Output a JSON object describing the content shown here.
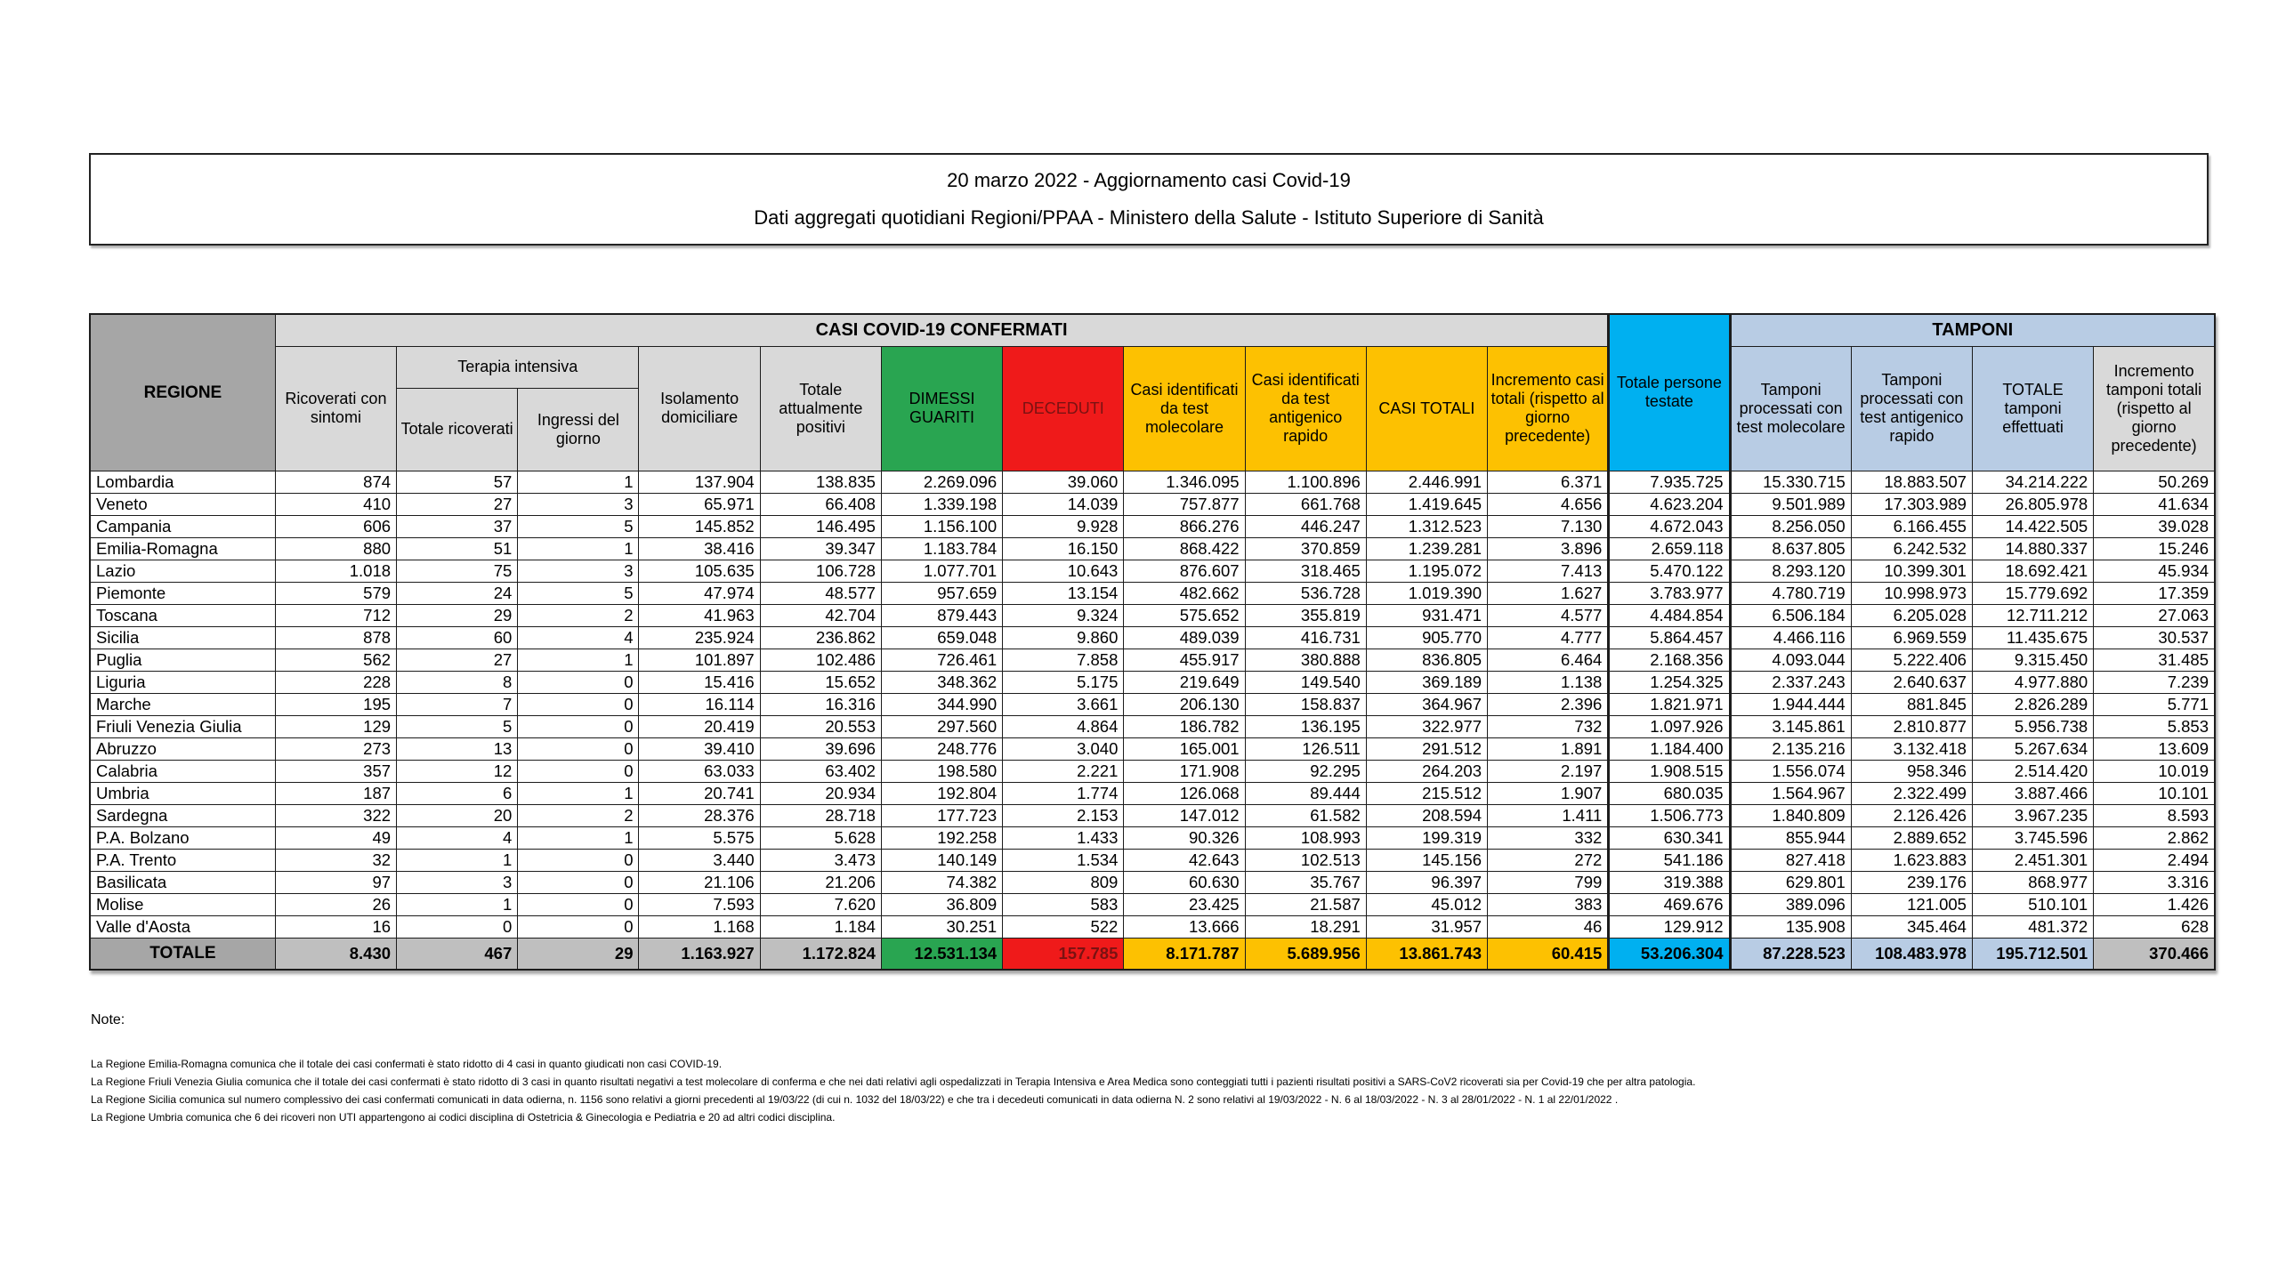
{
  "title": {
    "line1": "20 marzo 2022 - Aggiornamento casi Covid-19",
    "line2": "Dati aggregati quotidiani Regioni/PPAA - Ministero della Salute - Istituto Superiore di Sanità"
  },
  "colors": {
    "green": "#29a551",
    "red": "#ef1a1a",
    "gold": "#fdc101",
    "cyan": "#00b0f0",
    "light_blue": "#b8cce4",
    "header_gray": "#d9d9d9",
    "dark_gray": "#a6a6a6",
    "total_gray": "#bfbfbf",
    "deceduti_text": "#7a1212"
  },
  "table": {
    "corner_label": "REGIONE",
    "group1_label": "CASI COVID-19 CONFERMATI",
    "terapia_label": "Terapia intensiva",
    "group2_label": "TAMPONI",
    "total_label": "TOTALE",
    "columns": [
      {
        "label": "Ricoverati con sintomi",
        "theme": "plain"
      },
      {
        "label": "Totale ricoverati",
        "theme": "plain"
      },
      {
        "label": "Ingressi del giorno",
        "theme": "plain"
      },
      {
        "label": "Isolamento domiciliare",
        "theme": "plain"
      },
      {
        "label": "Totale attualmente positivi",
        "theme": "plain"
      },
      {
        "label": "DIMESSI GUARITI",
        "theme": "green"
      },
      {
        "label": "DECEDUTI",
        "theme": "red"
      },
      {
        "label": "Casi identificati da test molecolare",
        "theme": "gold"
      },
      {
        "label": "Casi identificati da test antigenico rapido",
        "theme": "gold"
      },
      {
        "label": "CASI TOTALI",
        "theme": "gold"
      },
      {
        "label": "Incremento casi totali (rispetto al giorno precedente)",
        "theme": "gold"
      },
      {
        "label": "Totale persone testate",
        "theme": "cyan"
      },
      {
        "label": "Tamponi processati con test molecolare",
        "theme": "blue"
      },
      {
        "label": "Tamponi processati con test antigenico rapido",
        "theme": "blue"
      },
      {
        "label": "TOTALE tamponi effettuati",
        "theme": "blue"
      },
      {
        "label": "Incremento tamponi totali (rispetto al giorno precedente)",
        "theme": "graylight"
      }
    ],
    "rows": [
      [
        "Lombardia",
        "874",
        "57",
        "1",
        "137.904",
        "138.835",
        "2.269.096",
        "39.060",
        "1.346.095",
        "1.100.896",
        "2.446.991",
        "6.371",
        "7.935.725",
        "15.330.715",
        "18.883.507",
        "34.214.222",
        "50.269"
      ],
      [
        "Veneto",
        "410",
        "27",
        "3",
        "65.971",
        "66.408",
        "1.339.198",
        "14.039",
        "757.877",
        "661.768",
        "1.419.645",
        "4.656",
        "4.623.204",
        "9.501.989",
        "17.303.989",
        "26.805.978",
        "41.634"
      ],
      [
        "Campania",
        "606",
        "37",
        "5",
        "145.852",
        "146.495",
        "1.156.100",
        "9.928",
        "866.276",
        "446.247",
        "1.312.523",
        "7.130",
        "4.672.043",
        "8.256.050",
        "6.166.455",
        "14.422.505",
        "39.028"
      ],
      [
        "Emilia-Romagna",
        "880",
        "51",
        "1",
        "38.416",
        "39.347",
        "1.183.784",
        "16.150",
        "868.422",
        "370.859",
        "1.239.281",
        "3.896",
        "2.659.118",
        "8.637.805",
        "6.242.532",
        "14.880.337",
        "15.246"
      ],
      [
        "Lazio",
        "1.018",
        "75",
        "3",
        "105.635",
        "106.728",
        "1.077.701",
        "10.643",
        "876.607",
        "318.465",
        "1.195.072",
        "7.413",
        "5.470.122",
        "8.293.120",
        "10.399.301",
        "18.692.421",
        "45.934"
      ],
      [
        "Piemonte",
        "579",
        "24",
        "5",
        "47.974",
        "48.577",
        "957.659",
        "13.154",
        "482.662",
        "536.728",
        "1.019.390",
        "1.627",
        "3.783.977",
        "4.780.719",
        "10.998.973",
        "15.779.692",
        "17.359"
      ],
      [
        "Toscana",
        "712",
        "29",
        "2",
        "41.963",
        "42.704",
        "879.443",
        "9.324",
        "575.652",
        "355.819",
        "931.471",
        "4.577",
        "4.484.854",
        "6.506.184",
        "6.205.028",
        "12.711.212",
        "27.063"
      ],
      [
        "Sicilia",
        "878",
        "60",
        "4",
        "235.924",
        "236.862",
        "659.048",
        "9.860",
        "489.039",
        "416.731",
        "905.770",
        "4.777",
        "5.864.457",
        "4.466.116",
        "6.969.559",
        "11.435.675",
        "30.537"
      ],
      [
        "Puglia",
        "562",
        "27",
        "1",
        "101.897",
        "102.486",
        "726.461",
        "7.858",
        "455.917",
        "380.888",
        "836.805",
        "6.464",
        "2.168.356",
        "4.093.044",
        "5.222.406",
        "9.315.450",
        "31.485"
      ],
      [
        "Liguria",
        "228",
        "8",
        "0",
        "15.416",
        "15.652",
        "348.362",
        "5.175",
        "219.649",
        "149.540",
        "369.189",
        "1.138",
        "1.254.325",
        "2.337.243",
        "2.640.637",
        "4.977.880",
        "7.239"
      ],
      [
        "Marche",
        "195",
        "7",
        "0",
        "16.114",
        "16.316",
        "344.990",
        "3.661",
        "206.130",
        "158.837",
        "364.967",
        "2.396",
        "1.821.971",
        "1.944.444",
        "881.845",
        "2.826.289",
        "5.771"
      ],
      [
        "Friuli Venezia Giulia",
        "129",
        "5",
        "0",
        "20.419",
        "20.553",
        "297.560",
        "4.864",
        "186.782",
        "136.195",
        "322.977",
        "732",
        "1.097.926",
        "3.145.861",
        "2.810.877",
        "5.956.738",
        "5.853"
      ],
      [
        "Abruzzo",
        "273",
        "13",
        "0",
        "39.410",
        "39.696",
        "248.776",
        "3.040",
        "165.001",
        "126.511",
        "291.512",
        "1.891",
        "1.184.400",
        "2.135.216",
        "3.132.418",
        "5.267.634",
        "13.609"
      ],
      [
        "Calabria",
        "357",
        "12",
        "0",
        "63.033",
        "63.402",
        "198.580",
        "2.221",
        "171.908",
        "92.295",
        "264.203",
        "2.197",
        "1.908.515",
        "1.556.074",
        "958.346",
        "2.514.420",
        "10.019"
      ],
      [
        "Umbria",
        "187",
        "6",
        "1",
        "20.741",
        "20.934",
        "192.804",
        "1.774",
        "126.068",
        "89.444",
        "215.512",
        "1.907",
        "680.035",
        "1.564.967",
        "2.322.499",
        "3.887.466",
        "10.101"
      ],
      [
        "Sardegna",
        "322",
        "20",
        "2",
        "28.376",
        "28.718",
        "177.723",
        "2.153",
        "147.012",
        "61.582",
        "208.594",
        "1.411",
        "1.506.773",
        "1.840.809",
        "2.126.426",
        "3.967.235",
        "8.593"
      ],
      [
        "P.A. Bolzano",
        "49",
        "4",
        "1",
        "5.575",
        "5.628",
        "192.258",
        "1.433",
        "90.326",
        "108.993",
        "199.319",
        "332",
        "630.341",
        "855.944",
        "2.889.652",
        "3.745.596",
        "2.862"
      ],
      [
        "P.A. Trento",
        "32",
        "1",
        "0",
        "3.440",
        "3.473",
        "140.149",
        "1.534",
        "42.643",
        "102.513",
        "145.156",
        "272",
        "541.186",
        "827.418",
        "1.623.883",
        "2.451.301",
        "2.494"
      ],
      [
        "Basilicata",
        "97",
        "3",
        "0",
        "21.106",
        "21.206",
        "74.382",
        "809",
        "60.630",
        "35.767",
        "96.397",
        "799",
        "319.388",
        "629.801",
        "239.176",
        "868.977",
        "3.316"
      ],
      [
        "Molise",
        "26",
        "1",
        "0",
        "7.593",
        "7.620",
        "36.809",
        "583",
        "23.425",
        "21.587",
        "45.012",
        "383",
        "469.676",
        "389.096",
        "121.005",
        "510.101",
        "1.426"
      ],
      [
        "Valle d'Aosta",
        "16",
        "0",
        "0",
        "1.168",
        "1.184",
        "30.251",
        "522",
        "13.666",
        "18.291",
        "31.957",
        "46",
        "129.912",
        "135.908",
        "345.464",
        "481.372",
        "628"
      ]
    ],
    "total": [
      "TOTALE",
      "8.430",
      "467",
      "29",
      "1.163.927",
      "1.172.824",
      "12.531.134",
      "157.785",
      "8.171.787",
      "5.689.956",
      "13.861.743",
      "60.415",
      "53.206.304",
      "87.228.523",
      "108.483.978",
      "195.712.501",
      "370.466"
    ]
  },
  "notes": {
    "heading": "Note:",
    "items": [
      "La Regione Emilia-Romagna comunica che il totale dei casi confermati è stato ridotto di 4 casi in quanto giudicati non casi COVID-19.",
      "La Regione Friuli Venezia Giulia comunica che  il totale dei casi confermati è stato ridotto di 3 casi  in quanto risultati negativi a test molecolare di conferma e che nei dati relativi agli ospedalizzati in Terapia Intensiva e Area Medica sono conteggiati tutti i pazienti risultati positivi a SARS-CoV2 ricoverati sia per Covid-19 che per altra patologia.",
      "La Regione Sicilia comunica sul numero complessivo dei casi confermati comunicati in data odierna, n. 1156 sono relativi a giorni precedenti al 19/03/22 (di cui n. 1032 del 18/03/22) e che tra i decedeuti comunicati in data odierna  N. 2 sono relativi al 19/03/2022 - N. 6 al 18/03/2022 - N. 3 al 28/01/2022 - N. 1 al 22/01/2022 .",
      "La Regione Umbria comunica che 6 dei ricoveri non UTI appartengono ai codici disciplina di Ostetricia & Ginecologia e Pediatria e 20 ad altri codici disciplina."
    ]
  }
}
